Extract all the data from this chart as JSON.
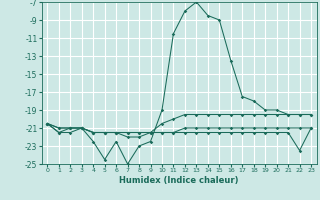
{
  "xlabel": "Humidex (Indice chaleur)",
  "xlim": [
    -0.5,
    23.5
  ],
  "ylim": [
    -25,
    -7
  ],
  "yticks": [
    -7,
    -9,
    -11,
    -13,
    -15,
    -17,
    -19,
    -21,
    -23,
    -25
  ],
  "xticks": [
    0,
    1,
    2,
    3,
    4,
    5,
    6,
    7,
    8,
    9,
    10,
    11,
    12,
    13,
    14,
    15,
    16,
    17,
    18,
    19,
    20,
    21,
    22,
    23
  ],
  "background_color": "#cde8e5",
  "grid_color": "#ffffff",
  "line_color": "#1a6b5a",
  "lines": [
    [
      -20.5,
      -21.5,
      -21.5,
      -21.0,
      -22.5,
      -24.5,
      -22.5,
      -25.0,
      -23.0,
      -22.5,
      -19.0,
      -10.5,
      -8.0,
      -7.0,
      -8.5,
      -9.0,
      -13.5,
      -17.5,
      -18.0,
      -19.0,
      -19.0,
      -19.5,
      -19.5,
      -19.5
    ],
    [
      -20.5,
      -21.5,
      -21.0,
      -21.0,
      -21.5,
      -21.5,
      -21.5,
      -22.0,
      -22.0,
      -21.5,
      -20.5,
      -20.0,
      -19.5,
      -19.5,
      -19.5,
      -19.5,
      -19.5,
      -19.5,
      -19.5,
      -19.5,
      -19.5,
      -19.5,
      -19.5,
      -19.5
    ],
    [
      -20.5,
      -21.0,
      -21.0,
      -21.0,
      -21.5,
      -21.5,
      -21.5,
      -21.5,
      -21.5,
      -21.5,
      -21.5,
      -21.5,
      -21.0,
      -21.0,
      -21.0,
      -21.0,
      -21.0,
      -21.0,
      -21.0,
      -21.0,
      -21.0,
      -21.0,
      -21.0,
      -21.0
    ],
    [
      -20.5,
      -21.0,
      -21.0,
      -21.0,
      -21.5,
      -21.5,
      -21.5,
      -21.5,
      -21.5,
      -21.5,
      -21.5,
      -21.5,
      -21.5,
      -21.5,
      -21.5,
      -21.5,
      -21.5,
      -21.5,
      -21.5,
      -21.5,
      -21.5,
      -21.5,
      -23.5,
      -21.0
    ]
  ]
}
